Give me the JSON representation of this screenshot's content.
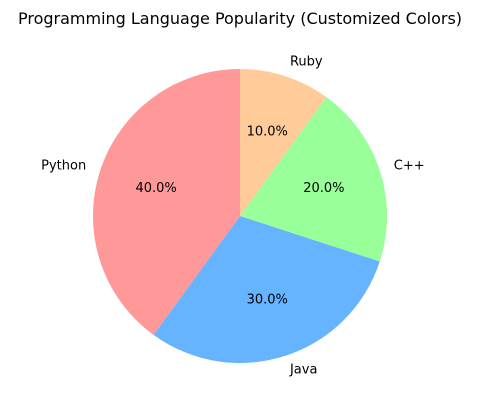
{
  "chart_data": {
    "type": "pie",
    "title": "Programming Language Popularity (Customized Colors)",
    "categories": [
      "Python",
      "Java",
      "C++",
      "Ruby"
    ],
    "values": [
      40,
      30,
      20,
      10
    ],
    "percent_labels": [
      "40.0%",
      "30.0%",
      "20.0%",
      "10.0%"
    ],
    "colors": [
      "#ff9999",
      "#66b3ff",
      "#99ff99",
      "#ffcc99"
    ],
    "start_angle_deg": 90,
    "direction": "counterclockwise"
  }
}
